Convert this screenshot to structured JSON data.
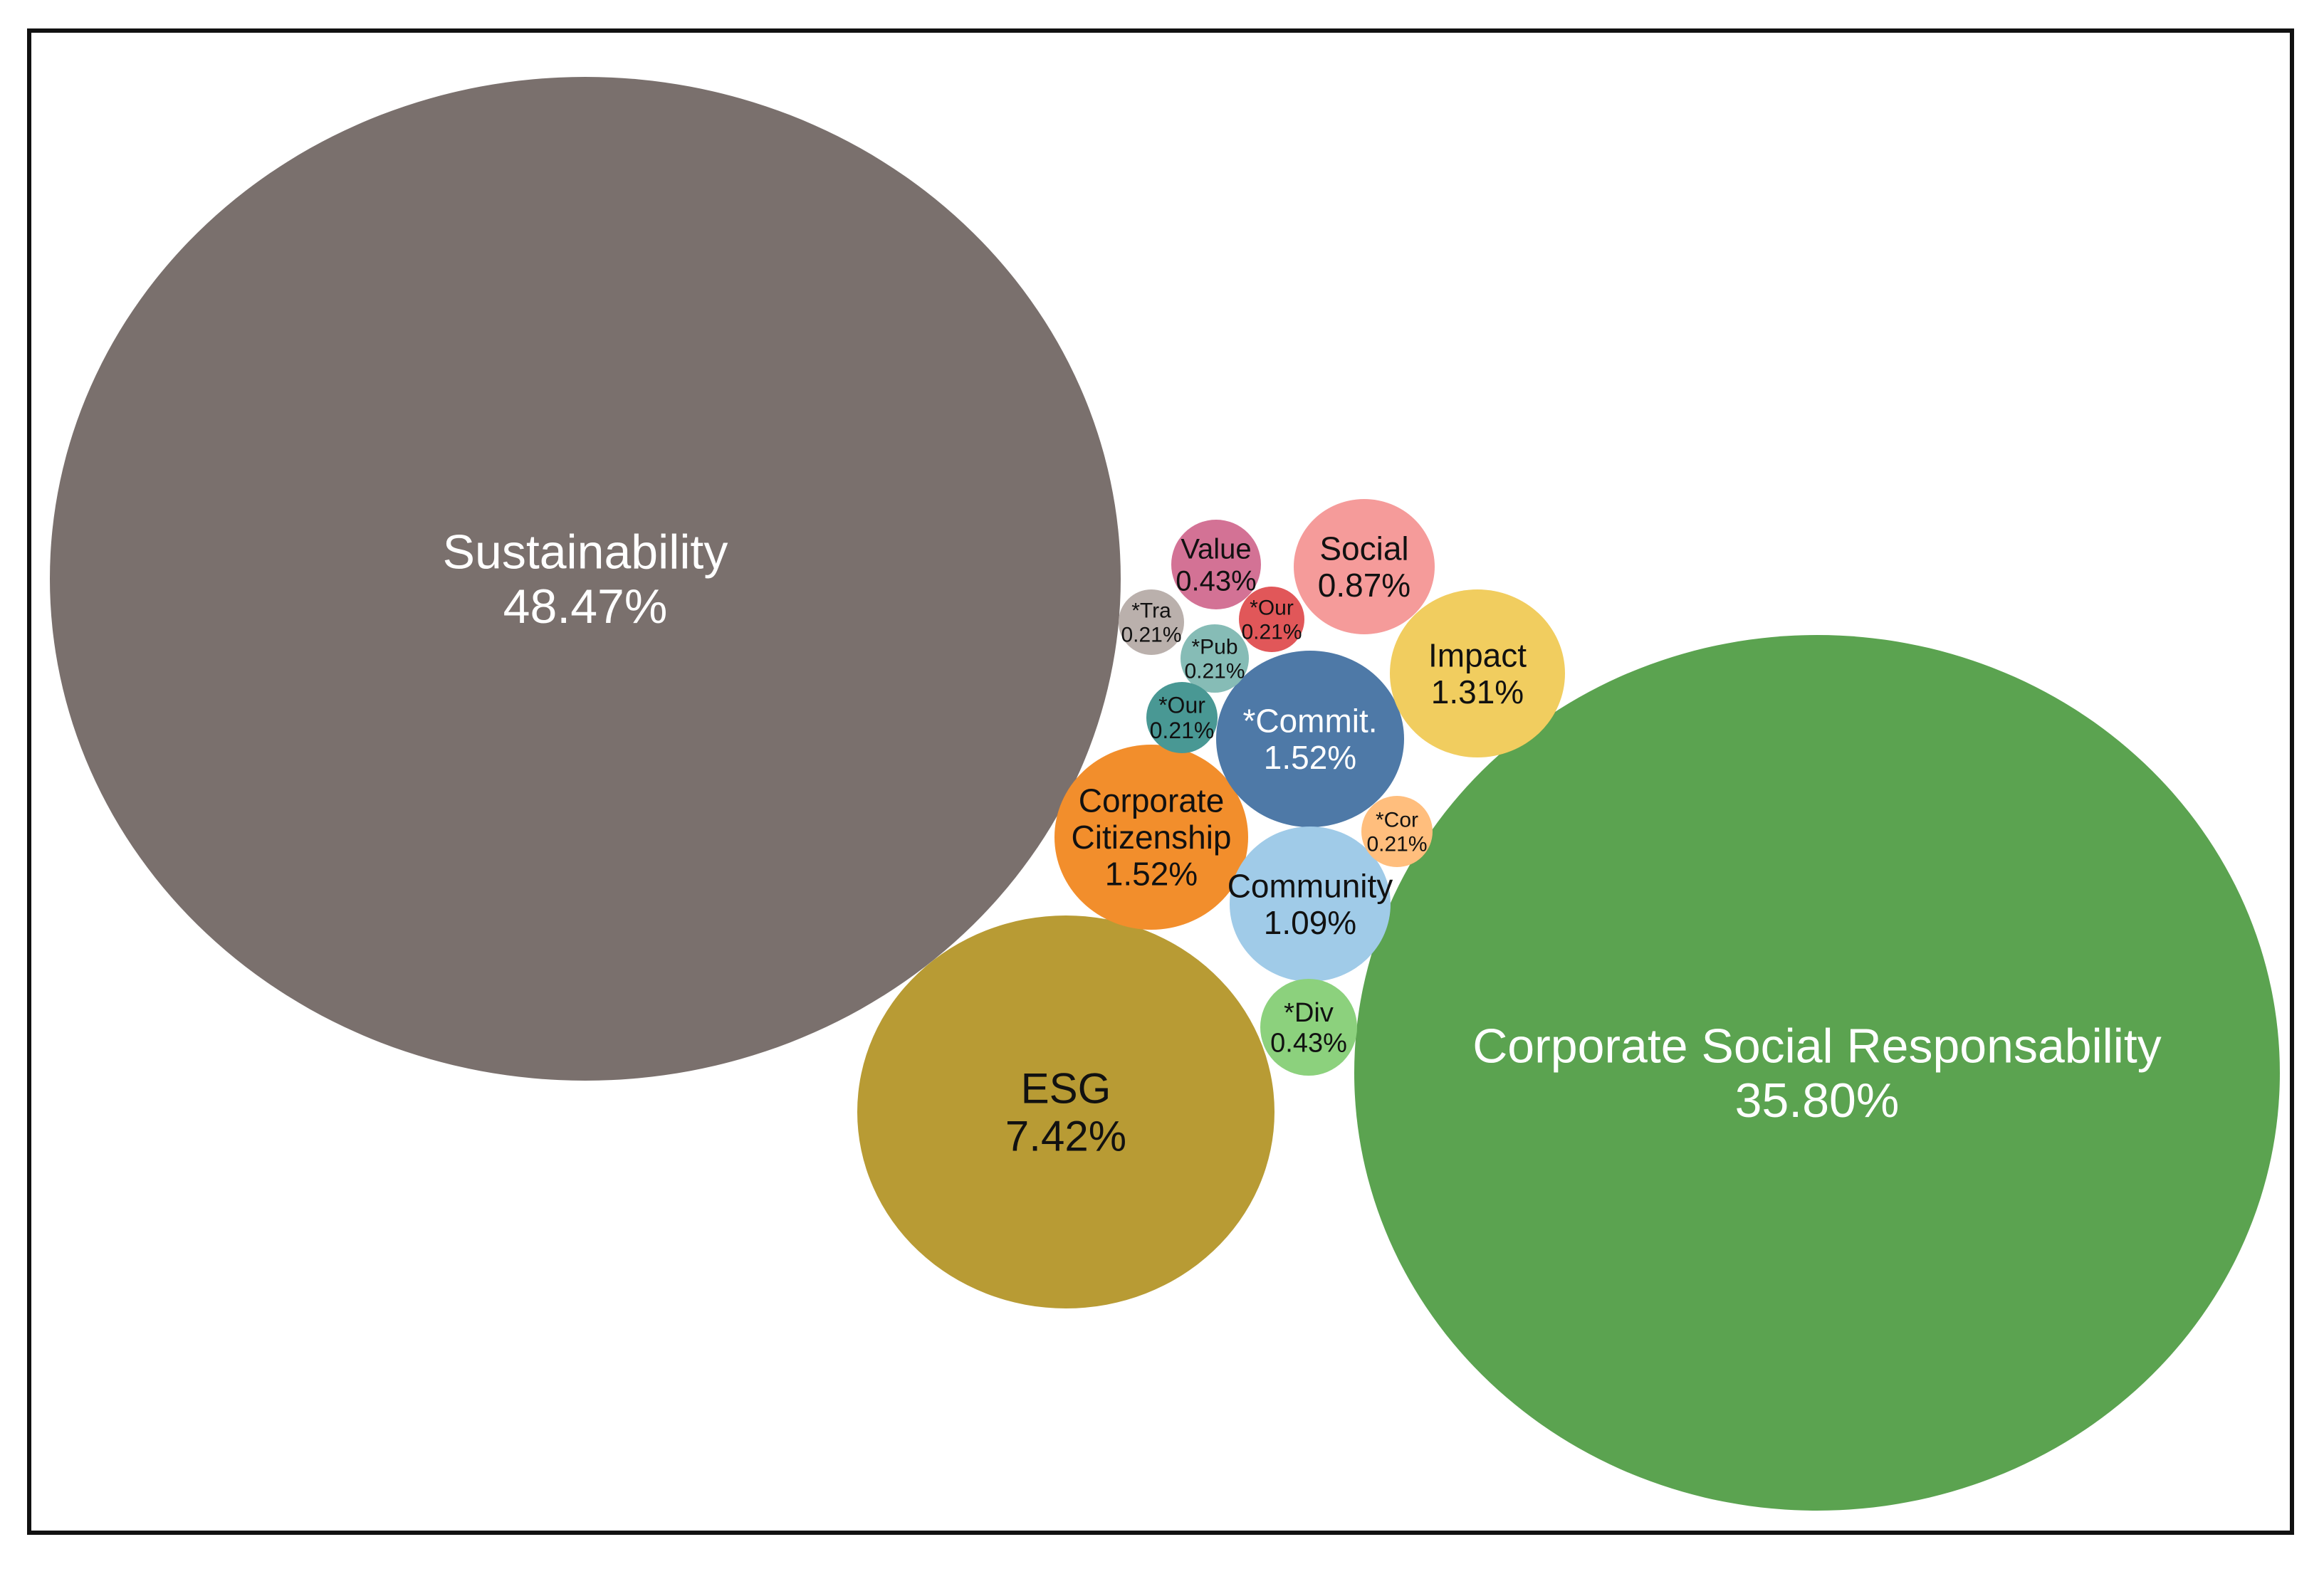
{
  "chart_data": {
    "type": "bubble",
    "title": "",
    "bubbles": [
      {
        "name": "Sustainability",
        "value": 48.47,
        "label": "48.47%",
        "color": "#7a706d",
        "text_color": "#ffffff"
      },
      {
        "name": "Corporate Social Responsability",
        "value": 35.8,
        "label": "35.80%",
        "color": "#5ba350",
        "text_color": "#ffffff"
      },
      {
        "name": "ESG",
        "value": 7.42,
        "label": "7.42%",
        "color": "#b89b34",
        "text_color": "#111111"
      },
      {
        "name": "Corporate Citizenship",
        "value": 1.52,
        "label": "1.52%",
        "color": "#f28e2c",
        "text_color": "#111111"
      },
      {
        "name": "*Commit.",
        "value": 1.52,
        "label": "1.52%",
        "color": "#4e79a7",
        "text_color": "#ffffff"
      },
      {
        "name": "Impact",
        "value": 1.31,
        "label": "1.31%",
        "color": "#f1cd5f",
        "text_color": "#111111"
      },
      {
        "name": "Community",
        "value": 1.09,
        "label": "1.09%",
        "color": "#a0cbe8",
        "text_color": "#111111"
      },
      {
        "name": "Social",
        "value": 0.87,
        "label": "0.87%",
        "color": "#f59b9a",
        "text_color": "#111111"
      },
      {
        "name": "Value",
        "value": 0.43,
        "label": "0.43%",
        "color": "#d37295",
        "text_color": "#111111"
      },
      {
        "name": "*Div",
        "value": 0.43,
        "label": "0.43%",
        "color": "#8cd17d",
        "text_color": "#111111"
      },
      {
        "name": "*Our",
        "value": 0.21,
        "label": "0.21%",
        "color": "#e15759",
        "text_color": "#111111"
      },
      {
        "name": "*Tra",
        "value": 0.21,
        "label": "0.21%",
        "color": "#bab0ac",
        "text_color": "#111111"
      },
      {
        "name": "*Pub",
        "value": 0.21,
        "label": "0.21%",
        "color": "#86bcb6",
        "text_color": "#111111"
      },
      {
        "name": "*Our",
        "value": 0.21,
        "label": "0.21%",
        "color": "#499894",
        "text_color": "#111111"
      },
      {
        "name": "*Cor",
        "value": 0.21,
        "label": "0.21%",
        "color": "#ffbe7d",
        "text_color": "#111111"
      }
    ]
  }
}
